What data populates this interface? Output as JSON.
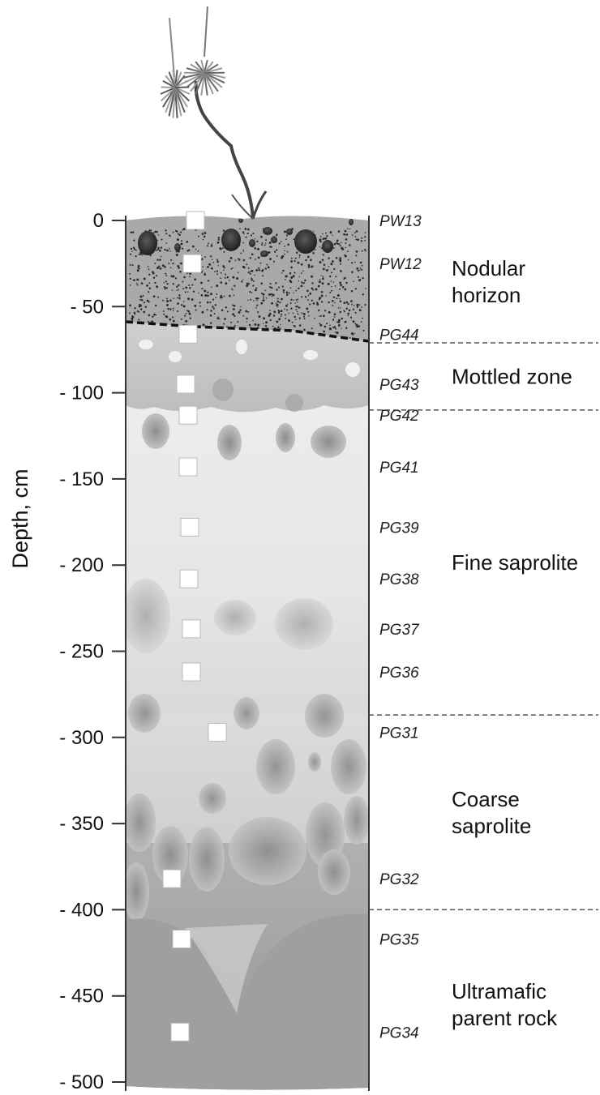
{
  "axis": {
    "title": "Depth, cm",
    "ticks": [
      "0",
      "- 50",
      "- 100",
      "- 150",
      "- 200",
      "- 250",
      "- 300",
      "- 350",
      "- 400",
      "- 450",
      "- 500"
    ],
    "tick_values": [
      0,
      -50,
      -100,
      -150,
      -200,
      -250,
      -300,
      -350,
      -400,
      -450,
      -500
    ]
  },
  "samples": [
    {
      "id": "PW13",
      "depth": 0
    },
    {
      "id": "PW12",
      "depth": -25
    },
    {
      "id": "PG44",
      "depth": -66
    },
    {
      "id": "PG43",
      "depth": -95
    },
    {
      "id": "PG42",
      "depth": -113
    },
    {
      "id": "PG41",
      "depth": -143
    },
    {
      "id": "PG39",
      "depth": -178
    },
    {
      "id": "PG38",
      "depth": -208
    },
    {
      "id": "PG37",
      "depth": -237
    },
    {
      "id": "PG36",
      "depth": -262
    },
    {
      "id": "PG31",
      "depth": -297
    },
    {
      "id": "PG32",
      "depth": -382
    },
    {
      "id": "PG35",
      "depth": -417
    },
    {
      "id": "PG34",
      "depth": -471
    }
  ],
  "zones": [
    {
      "lines": [
        "Nodular",
        "horizon"
      ],
      "top": 0,
      "bottom": -71
    },
    {
      "lines": [
        "Mottled zone"
      ],
      "top": -71,
      "bottom": -110
    },
    {
      "lines": [
        "Fine saprolite"
      ],
      "top": -110,
      "bottom": -287
    },
    {
      "lines": [
        "Coarse",
        "saprolite"
      ],
      "top": -287,
      "bottom": -400
    },
    {
      "lines": [
        "Ultramafic",
        "parent rock"
      ],
      "top": -400,
      "bottom": -510
    }
  ],
  "colors": {
    "nodular": "#a9a9a9",
    "mottled": "#c4c4c4",
    "fine_saprolite": "#ececec",
    "coarse_saprolite": "#d6d6d6",
    "parent_rock": "#9c9c9c",
    "nodule": "#3a3a3a",
    "sample_marker": "#ffffff"
  },
  "icons": [
    "plant-icon"
  ]
}
